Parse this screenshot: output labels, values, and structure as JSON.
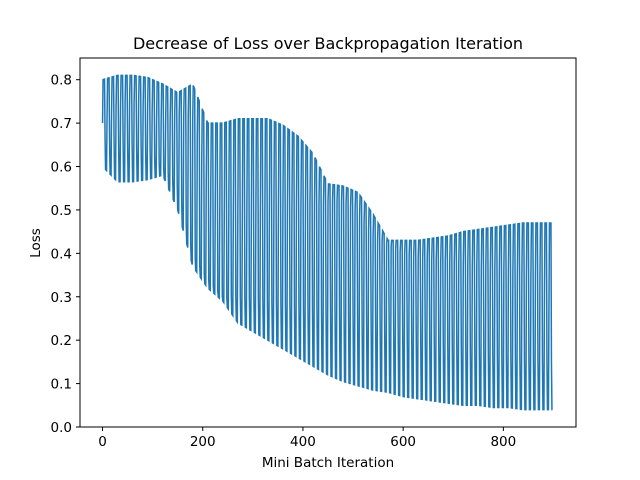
{
  "chart_data": {
    "type": "line",
    "title": "Decrease of Loss over Backpropagation Iteration",
    "xlabel": "Mini Batch Iteration",
    "ylabel": "Loss",
    "xlim": [
      -45,
      945
    ],
    "ylim": [
      0.0,
      0.85
    ],
    "xticks": [
      0,
      200,
      400,
      600,
      800
    ],
    "yticks": [
      0.0,
      0.1,
      0.2,
      0.3,
      0.4,
      0.5,
      0.6,
      0.7,
      0.8
    ],
    "xtick_labels": [
      "0",
      "200",
      "400",
      "600",
      "800"
    ],
    "ytick_labels": [
      "0.0",
      "0.1",
      "0.2",
      "0.3",
      "0.4",
      "0.5",
      "0.6",
      "0.7",
      "0.8"
    ],
    "grid": false,
    "legend": "none",
    "color": "#1f77b4",
    "cycle_length": 9,
    "series": [
      {
        "x": [
          0,
          30,
          60,
          90,
          120,
          150,
          180,
          210,
          240,
          270,
          300,
          330,
          360,
          390,
          420,
          450,
          480,
          510,
          540,
          570,
          600,
          630,
          660,
          690,
          720,
          750,
          780,
          810,
          840,
          870,
          898
        ],
        "max": [
          0.8,
          0.81,
          0.81,
          0.805,
          0.79,
          0.77,
          0.79,
          0.7,
          0.7,
          0.71,
          0.71,
          0.71,
          0.695,
          0.67,
          0.63,
          0.56,
          0.555,
          0.54,
          0.49,
          0.43,
          0.43,
          0.43,
          0.435,
          0.44,
          0.45,
          0.455,
          0.46,
          0.465,
          0.47,
          0.47,
          0.47
        ],
        "upper": [
          0.7,
          0.74,
          0.75,
          0.735,
          0.7,
          0.72,
          0.71,
          0.55,
          0.49,
          0.48,
          0.48,
          0.49,
          0.5,
          0.51,
          0.51,
          0.52,
          0.52,
          0.49,
          0.44,
          0.42,
          0.4,
          0.39,
          0.385,
          0.38,
          0.375,
          0.37,
          0.36,
          0.355,
          0.35,
          0.35,
          0.25
        ],
        "lower": [
          0.67,
          0.66,
          0.65,
          0.64,
          0.6,
          0.56,
          0.4,
          0.34,
          0.3,
          0.3,
          0.3,
          0.29,
          0.285,
          0.28,
          0.275,
          0.27,
          0.265,
          0.26,
          0.25,
          0.24,
          0.23,
          0.22,
          0.21,
          0.2,
          0.19,
          0.18,
          0.17,
          0.16,
          0.16,
          0.16,
          0.15
        ],
        "min": [
          0.6,
          0.565,
          0.565,
          0.57,
          0.58,
          0.5,
          0.37,
          0.32,
          0.29,
          0.24,
          0.22,
          0.2,
          0.18,
          0.16,
          0.14,
          0.12,
          0.105,
          0.095,
          0.085,
          0.08,
          0.07,
          0.065,
          0.06,
          0.055,
          0.05,
          0.05,
          0.045,
          0.045,
          0.04,
          0.04,
          0.04
        ]
      }
    ]
  }
}
